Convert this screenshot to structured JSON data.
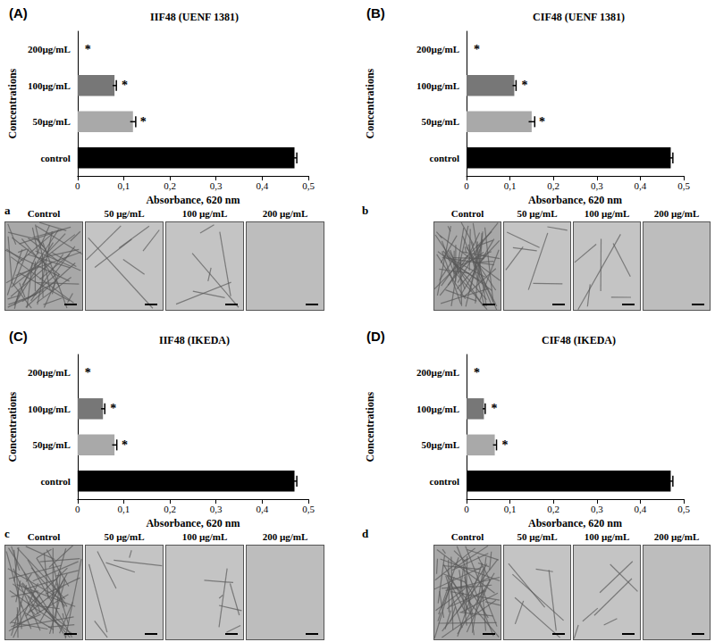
{
  "chart_data": [
    {
      "type": "bar",
      "orientation": "horizontal",
      "panel_label": "(A)",
      "title": "IIF48 (UENF 1381)",
      "x_label": "Absorbance, 620 nm",
      "y_label": "Concentrations",
      "categories": [
        "control",
        "50µg/mL",
        "100µg/mL",
        "200µg/mL"
      ],
      "values": [
        0.47,
        0.12,
        0.08,
        0
      ],
      "errors": [
        0.005,
        0.006,
        0.004,
        0
      ],
      "colors": [
        "#000000",
        "#a9a9a9",
        "#777777",
        "#8c8c8c"
      ],
      "annotations": [
        null,
        "*",
        "*",
        "*"
      ],
      "xlim": [
        0,
        0.5
      ],
      "xticks": [
        0,
        {
          "value": 0.1,
          "label": "0,1"
        },
        {
          "value": 0.2,
          "label": "0,2"
        },
        {
          "value": 0.3,
          "label": "0,3"
        },
        {
          "value": 0.4,
          "label": "0,4"
        },
        {
          "value": 0.5,
          "label": "0,5"
        }
      ],
      "grid": false,
      "image_label": "a",
      "image_captions": [
        "Control",
        "50 µg/mL",
        "100 µg/mL",
        "200 µg/mL"
      ]
    },
    {
      "type": "bar",
      "orientation": "horizontal",
      "panel_label": "(B)",
      "title": "CIF48 (UENF 1381)",
      "x_label": "Absorbance, 620 nm",
      "y_label": "Concentrations",
      "categories": [
        "control",
        "50µg/mL",
        "100µg/mL",
        "200µg/mL"
      ],
      "values": [
        0.47,
        0.15,
        0.11,
        0
      ],
      "errors": [
        0.005,
        0.007,
        0.004,
        0
      ],
      "colors": [
        "#000000",
        "#a9a9a9",
        "#777777",
        "#8c8c8c"
      ],
      "annotations": [
        null,
        "*",
        "*",
        "*"
      ],
      "xlim": [
        0,
        0.5
      ],
      "xticks": [
        0,
        {
          "value": 0.1,
          "label": "0,1"
        },
        {
          "value": 0.2,
          "label": "0,2"
        },
        {
          "value": 0.3,
          "label": "0,3"
        },
        {
          "value": 0.4,
          "label": "0,4"
        },
        {
          "value": 0.5,
          "label": "0,5"
        }
      ],
      "grid": false,
      "image_label": "b",
      "image_captions": [
        "Control",
        "50 µg/mL",
        "100 µg/mL",
        "200 µg/mL"
      ]
    },
    {
      "type": "bar",
      "orientation": "horizontal",
      "panel_label": "(C)",
      "title": "IIF48 (IKEDA)",
      "x_label": "Absorbance, 620 nm",
      "y_label": "Concentrations",
      "categories": [
        "control",
        "50µg/mL",
        "100µg/mL",
        "200µg/mL"
      ],
      "values": [
        0.47,
        0.08,
        0.055,
        0
      ],
      "errors": [
        0.005,
        0.005,
        0.004,
        0
      ],
      "colors": [
        "#000000",
        "#a9a9a9",
        "#777777",
        "#8c8c8c"
      ],
      "annotations": [
        null,
        "*",
        "*",
        "*"
      ],
      "xlim": [
        0,
        0.5
      ],
      "xticks": [
        0,
        {
          "value": 0.1,
          "label": "0,1"
        },
        {
          "value": 0.2,
          "label": "0,2"
        },
        {
          "value": 0.3,
          "label": "0,3"
        },
        {
          "value": 0.4,
          "label": "0,4"
        },
        {
          "value": 0.5,
          "label": "0,5"
        }
      ],
      "grid": false,
      "image_label": "c",
      "image_captions": [
        "Control",
        "50 µg/mL",
        "100 µg/mL",
        "200 µg/mL"
      ]
    },
    {
      "type": "bar",
      "orientation": "horizontal",
      "panel_label": "(D)",
      "title": "CIF48 (IKEDA)",
      "x_label": "Absorbance, 620 nm",
      "y_label": "Concentrations",
      "categories": [
        "control",
        "50µg/mL",
        "100µg/mL",
        "200µg/mL"
      ],
      "values": [
        0.47,
        0.065,
        0.04,
        0
      ],
      "errors": [
        0.005,
        0.004,
        0.003,
        0
      ],
      "colors": [
        "#000000",
        "#a9a9a9",
        "#777777",
        "#8c8c8c"
      ],
      "annotations": [
        null,
        "*",
        "*",
        "*"
      ],
      "xlim": [
        0,
        0.5
      ],
      "xticks": [
        0,
        {
          "value": 0.1,
          "label": "0,1"
        },
        {
          "value": 0.2,
          "label": "0,2"
        },
        {
          "value": 0.3,
          "label": "0,3"
        },
        {
          "value": 0.4,
          "label": "0,4"
        },
        {
          "value": 0.5,
          "label": "0,5"
        }
      ],
      "grid": false,
      "image_label": "d",
      "image_captions": [
        "Control",
        "50 µg/mL",
        "100 µg/mL",
        "200 µg/mL"
      ]
    }
  ]
}
